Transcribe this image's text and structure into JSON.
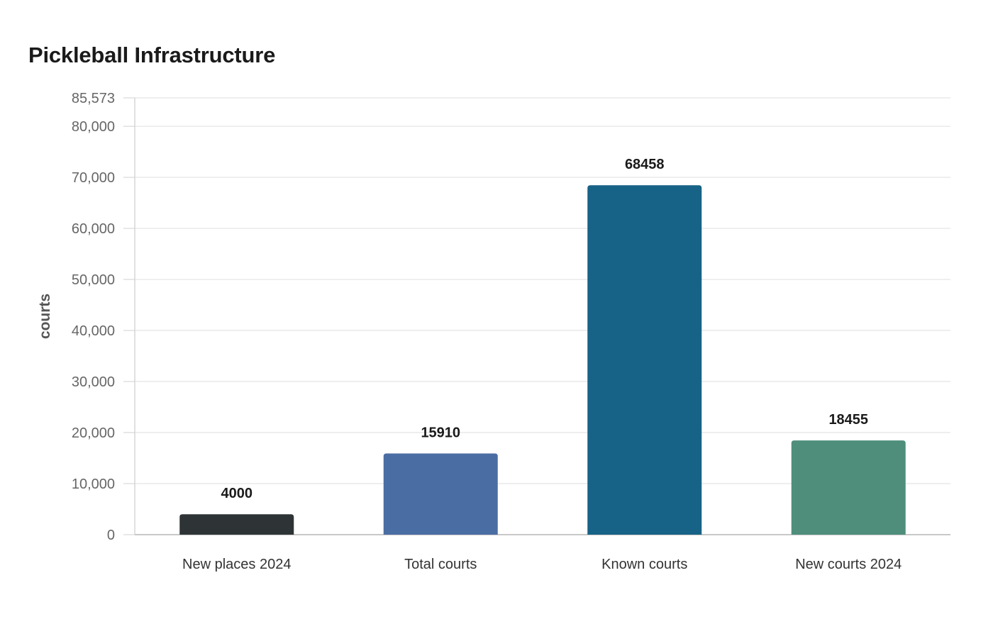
{
  "chart_data": {
    "type": "bar",
    "title": "Pickleball Infrastructure",
    "xlabel": "",
    "ylabel": "courts",
    "categories": [
      "New places 2024",
      "Total courts",
      "Known courts",
      "New courts 2024"
    ],
    "values": [
      4000,
      15910,
      68458,
      18455
    ],
    "data_labels": [
      "4000",
      "15910",
      "68458",
      "18455"
    ],
    "colors": [
      "#2e3436",
      "#4a6da3",
      "#176287",
      "#4e8e7b"
    ],
    "ylim": [
      0,
      85573
    ],
    "yticks": [
      0,
      10000,
      20000,
      30000,
      40000,
      50000,
      60000,
      70000,
      80000,
      85573
    ],
    "ytick_labels": [
      "0",
      "10,000",
      "20,000",
      "30,000",
      "40,000",
      "50,000",
      "60,000",
      "70,000",
      "80,000",
      "85,573"
    ],
    "grid": true,
    "legend": "none"
  }
}
